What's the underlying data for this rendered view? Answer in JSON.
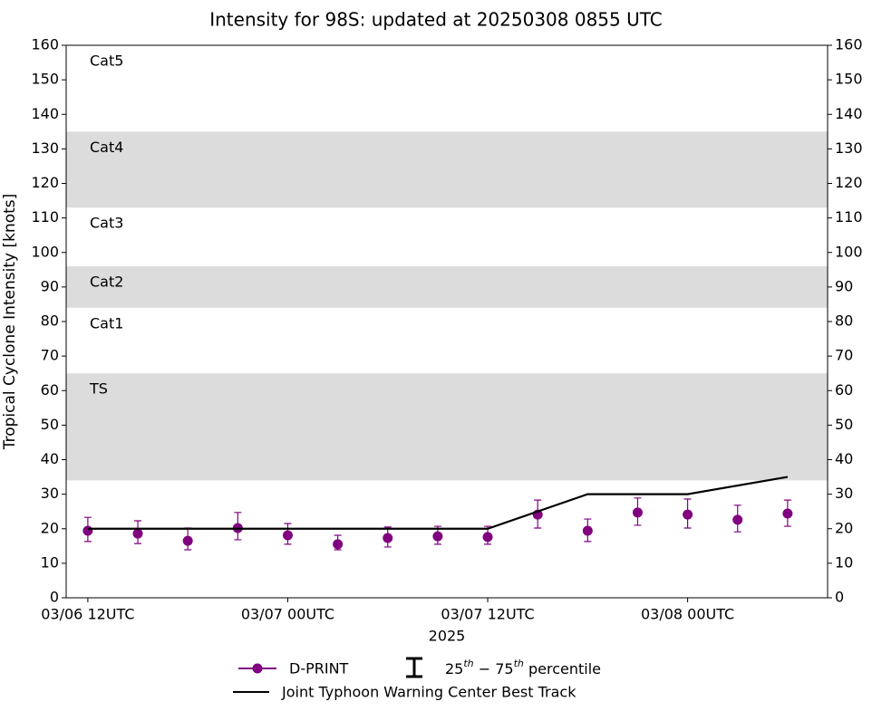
{
  "chart_data": {
    "type": "line",
    "title": "Intensity for 98S: updated at 20250308 0855 UTC",
    "ylabel": "Tropical Cyclone Intensity [knots]",
    "xlabel": "2025",
    "xlim": [
      "2025-03-06T10:42:00Z",
      "2025-03-08T08:24:00Z"
    ],
    "xticks": [
      {
        "value": "2025-03-06T12:00:00Z",
        "label": "03/06 12UTC"
      },
      {
        "value": "2025-03-07T00:00:00Z",
        "label": "03/07 00UTC"
      },
      {
        "value": "2025-03-07T12:00:00Z",
        "label": "03/07 12UTC"
      },
      {
        "value": "2025-03-08T00:00:00Z",
        "label": "03/08 00UTC"
      }
    ],
    "ylim": [
      0,
      160
    ],
    "yticks": [
      0,
      10,
      20,
      30,
      40,
      50,
      60,
      70,
      80,
      90,
      100,
      110,
      120,
      130,
      140,
      150,
      160
    ],
    "bands": [
      {
        "name": "TS",
        "range": [
          34,
          65
        ],
        "shaded": true
      },
      {
        "name": "Cat1",
        "range": [
          65,
          84
        ],
        "shaded": false
      },
      {
        "name": "Cat2",
        "range": [
          84,
          96
        ],
        "shaded": true
      },
      {
        "name": "Cat3",
        "range": [
          96,
          113
        ],
        "shaded": false
      },
      {
        "name": "Cat4",
        "range": [
          113,
          135
        ],
        "shaded": true
      },
      {
        "name": "Cat5",
        "range": [
          135,
          160
        ],
        "shaded": false
      }
    ],
    "band_color": "#dcdcdc",
    "series": [
      {
        "name": "D-PRINT",
        "color": "#800080",
        "x": [
          "2025-03-06T12:00:00Z",
          "2025-03-06T15:00:00Z",
          "2025-03-06T18:00:00Z",
          "2025-03-06T21:00:00Z",
          "2025-03-07T00:00:00Z",
          "2025-03-07T03:00:00Z",
          "2025-03-07T06:00:00Z",
          "2025-03-07T09:00:00Z",
          "2025-03-07T12:00:00Z",
          "2025-03-07T15:00:00Z",
          "2025-03-07T18:00:00Z",
          "2025-03-07T21:00:00Z",
          "2025-03-08T00:00:00Z",
          "2025-03-08T03:00:00Z",
          "2025-03-08T06:00:00Z"
        ],
        "values": [
          19.4,
          18.6,
          16.5,
          20.2,
          18.1,
          15.5,
          17.3,
          17.8,
          17.6,
          24.1,
          19.4,
          24.7,
          24.1,
          22.6,
          24.4
        ],
        "p25": [
          16.3,
          15.7,
          13.9,
          16.8,
          15.5,
          13.9,
          14.7,
          15.5,
          15.5,
          20.2,
          16.3,
          21.0,
          20.2,
          19.1,
          20.7
        ],
        "p75": [
          23.3,
          22.3,
          20.2,
          24.7,
          21.5,
          18.1,
          20.5,
          20.7,
          20.7,
          28.3,
          22.8,
          28.9,
          28.6,
          26.8,
          28.3
        ]
      },
      {
        "name": "Joint Typhoon Warning Center Best Track",
        "color": "#000000",
        "x": [
          "2025-03-06T12:00:00Z",
          "2025-03-06T18:00:00Z",
          "2025-03-07T00:00:00Z",
          "2025-03-07T06:00:00Z",
          "2025-03-07T12:00:00Z",
          "2025-03-07T18:00:00Z",
          "2025-03-08T00:00:00Z",
          "2025-03-08T06:00:00Z"
        ],
        "values": [
          20,
          20,
          20,
          20,
          20,
          30,
          30,
          35
        ]
      }
    ],
    "errorbar_legend": [
      "25",
      "th",
      " − 75",
      "th",
      " percentile"
    ]
  }
}
